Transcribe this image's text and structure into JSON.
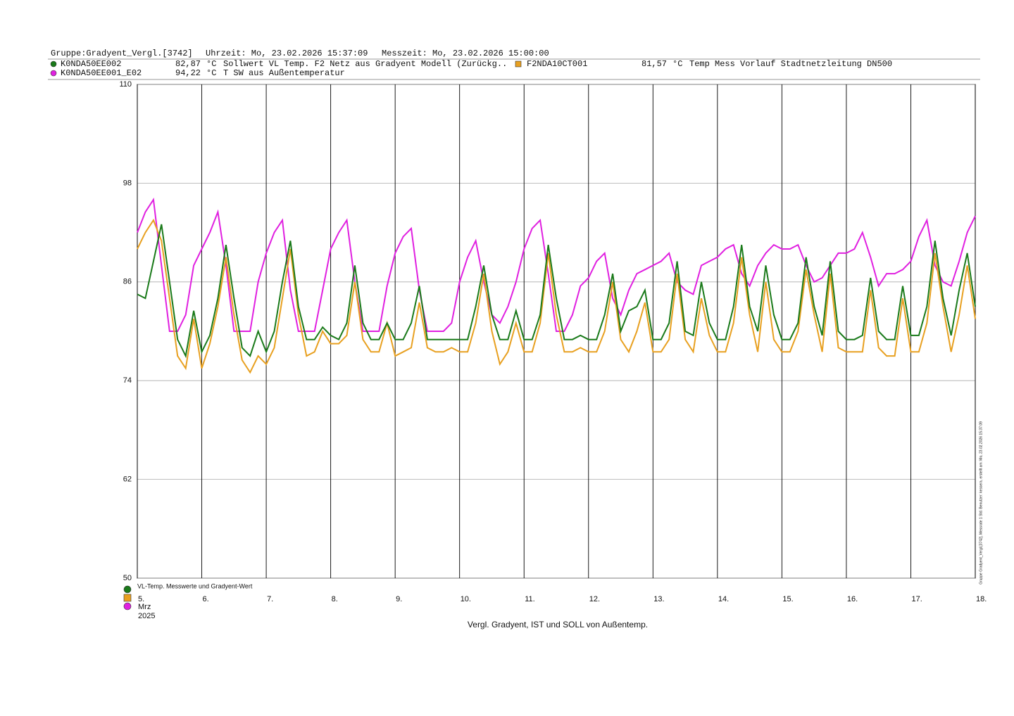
{
  "header": {
    "group": "Gruppe:Gradyent_Vergl.[3742]",
    "time": "Uhrzeit: Mo, 23.02.2026 15:37:09",
    "measure_time": "Messzeit: Mo, 23.02.2026 15:00:00"
  },
  "side_note": "Gruppe Gradyent_Vergl.[3742], Messrate 1 Std. Benutzer: kessera, erstellt am: Mo, 23.02.2026 15:37:09",
  "chart_data": {
    "type": "line",
    "legend_title": "VL-Temp. Messwerte und Gradyent-Wert",
    "x_label": "Vergl. Gradyent, IST und SOLL von Außentemp.",
    "x_month": "Mrz",
    "x_year": "2025",
    "xlim": [
      5,
      18
    ],
    "xticks": [
      {
        "value": 5,
        "label": "5."
      },
      {
        "value": 6,
        "label": "6."
      },
      {
        "value": 7,
        "label": "7."
      },
      {
        "value": 8,
        "label": "8."
      },
      {
        "value": 9,
        "label": "9."
      },
      {
        "value": 10,
        "label": "10."
      },
      {
        "value": 11,
        "label": "11."
      },
      {
        "value": 12,
        "label": "12."
      },
      {
        "value": 13,
        "label": "13."
      },
      {
        "value": 14,
        "label": "14."
      },
      {
        "value": 15,
        "label": "15."
      },
      {
        "value": 16,
        "label": "16."
      },
      {
        "value": 17,
        "label": "17."
      },
      {
        "value": 18,
        "label": "18."
      }
    ],
    "ylim": [
      50,
      110
    ],
    "yticks": [
      50,
      62,
      74,
      86,
      98,
      110
    ],
    "grid": true,
    "x": [
      5,
      5.125,
      5.25,
      5.375,
      5.5,
      5.625,
      5.75,
      5.875,
      6,
      6.125,
      6.25,
      6.375,
      6.5,
      6.625,
      6.75,
      6.875,
      7,
      7.125,
      7.25,
      7.375,
      7.5,
      7.625,
      7.75,
      7.875,
      8,
      8.125,
      8.25,
      8.375,
      8.5,
      8.625,
      8.75,
      8.875,
      9,
      9.125,
      9.25,
      9.375,
      9.5,
      9.625,
      9.75,
      9.875,
      10,
      10.125,
      10.25,
      10.375,
      10.5,
      10.625,
      10.75,
      10.875,
      11,
      11.125,
      11.25,
      11.375,
      11.5,
      11.625,
      11.75,
      11.875,
      12,
      12.125,
      12.25,
      12.375,
      12.5,
      12.625,
      12.75,
      12.875,
      13,
      13.125,
      13.25,
      13.375,
      13.5,
      13.625,
      13.75,
      13.875,
      14,
      14.125,
      14.25,
      14.375,
      14.5,
      14.625,
      14.75,
      14.875,
      15,
      15.125,
      15.25,
      15.375,
      15.5,
      15.625,
      15.75,
      15.875,
      16,
      16.125,
      16.25,
      16.375,
      16.5,
      16.625,
      16.75,
      16.875,
      17,
      17.125,
      17.25,
      17.375,
      17.5,
      17.625,
      17.75,
      17.875,
      18
    ],
    "series": [
      {
        "name": "K0NDA50EE002",
        "current": "82,87",
        "unit": "°C",
        "description": "Sollwert VL Temp. F2 Netz aus Gradyent Modell (Zurückg..",
        "color": "#1a7a1a",
        "values": [
          84.5,
          84,
          88.5,
          93,
          86,
          79,
          77,
          82.5,
          77.5,
          79.5,
          84,
          90.5,
          84,
          78,
          77,
          80,
          77.5,
          80,
          86,
          91,
          83,
          79,
          79,
          80.5,
          79.5,
          79,
          81,
          88,
          81,
          79,
          79,
          81,
          79,
          79,
          81,
          85.5,
          79,
          79,
          79,
          79,
          79,
          79,
          83,
          88,
          82,
          79,
          79,
          82.5,
          79,
          79,
          82,
          90.5,
          84,
          79,
          79,
          79.5,
          79,
          79,
          82,
          87,
          80,
          82.5,
          83,
          85,
          79,
          79,
          81,
          88.5,
          80,
          79.5,
          86,
          81,
          79,
          79,
          83,
          90.5,
          83,
          80,
          88,
          82,
          79,
          79,
          81,
          89,
          83,
          79.5,
          88.5,
          80,
          79,
          79,
          79.5,
          86.5,
          80,
          79,
          79,
          85.5,
          79.5,
          79.5,
          83,
          91,
          84,
          79.5,
          85,
          89.5,
          83
        ]
      },
      {
        "name": "F2NDA10CT001",
        "current": "81,57",
        "unit": "°C",
        "description": "Temp Mess Vorlauf Stadtnetzleitung DN500",
        "color": "#e8a020",
        "values": [
          90,
          92,
          93.5,
          91,
          84,
          77,
          75.5,
          81.5,
          75.5,
          78.5,
          83,
          89,
          82,
          76.5,
          75,
          77,
          76,
          78,
          84,
          90,
          82,
          77,
          77.5,
          80,
          78.5,
          78.5,
          79.5,
          86,
          79,
          77.5,
          77.5,
          81,
          77,
          77.5,
          78,
          83.5,
          78,
          77.5,
          77.5,
          78,
          77.5,
          77.5,
          81,
          87,
          80,
          76,
          77.5,
          81,
          77.5,
          77.5,
          81,
          89.5,
          82,
          77.5,
          77.5,
          78,
          77.5,
          77.5,
          80,
          86,
          79,
          77.5,
          80,
          83.5,
          77.5,
          77.5,
          79,
          87,
          79,
          77.5,
          84,
          79.5,
          77.5,
          77.5,
          81,
          89,
          82,
          77.5,
          86,
          79,
          77.5,
          77.5,
          80,
          87.5,
          82,
          77.5,
          87,
          78,
          77.5,
          77.5,
          77.5,
          85,
          78,
          77,
          77,
          84,
          77.5,
          77.5,
          81,
          89.5,
          83,
          77.5,
          82,
          88,
          81.5
        ]
      },
      {
        "name": "K0NDA50EE001_E02",
        "current": "94,22",
        "unit": "°C",
        "description": "T SW aus Außentemperatur",
        "color": "#e020e0",
        "values": [
          92,
          94.5,
          96,
          88,
          80,
          80,
          82,
          88,
          90,
          92,
          94.5,
          88,
          80,
          80,
          80,
          86,
          89.5,
          92,
          93.5,
          85,
          80,
          80,
          80,
          85,
          90,
          92,
          93.5,
          86,
          80,
          80,
          80,
          85.5,
          89.5,
          91.5,
          92.5,
          85,
          80,
          80,
          80,
          81,
          86,
          89,
          91,
          86,
          82,
          81,
          83,
          86,
          90,
          92.5,
          93.5,
          87,
          80,
          80,
          82,
          85.5,
          86.5,
          88.5,
          89.5,
          84,
          82,
          85,
          87,
          87.5,
          88,
          88.5,
          89.5,
          86,
          85,
          84.5,
          88,
          88.5,
          89,
          90,
          90.5,
          87,
          85.5,
          88,
          89.5,
          90.5,
          90,
          90,
          90.5,
          88,
          86,
          86.5,
          88,
          89.5,
          89.5,
          90,
          92,
          89,
          85.5,
          87,
          87,
          87.5,
          88.5,
          91.5,
          93.5,
          88,
          86,
          85.5,
          88.5,
          92,
          94
        ]
      }
    ]
  }
}
